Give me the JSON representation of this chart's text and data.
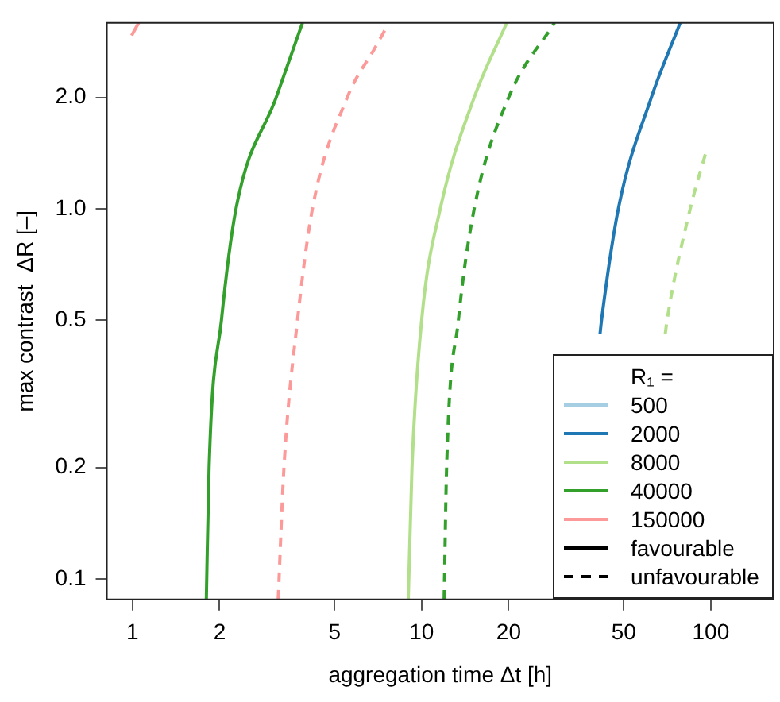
{
  "chart_data": {
    "type": "line",
    "xlabel": "aggregation time Δt [h]",
    "ylabel": "max contrast  ΔR [–]",
    "legend_title": "R₁ =",
    "legend": "bottom right",
    "log": "xy",
    "grid": false,
    "marker": "none",
    "xlim": [
      0.815,
      165
    ],
    "ylim": [
      0.088,
      3.18
    ],
    "xticks": [
      1,
      2,
      5,
      10,
      20,
      50,
      100
    ],
    "yticks": [
      0.1,
      0.2,
      0.5,
      {
        "value": 1,
        "label": "1.0"
      },
      {
        "value": 2,
        "label": "2.0"
      }
    ],
    "series": [
      {
        "name": "500",
        "color": "#a6cee3",
        "line_style": "solid"
      },
      {
        "name": "2000",
        "color": "#1f78b4",
        "line_style": "solid",
        "x": [
          41.4,
          41.9,
          47.9,
          62.3,
          78.4
        ],
        "values": [
          0.459,
          0.5,
          1.0,
          2.0,
          3.18
        ]
      },
      {
        "name": "8000",
        "color": "#b2df8a",
        "line_style": "solid",
        "x": [
          8.99,
          9.26,
          10.0,
          11.6,
          15.2,
          19.7
        ],
        "values": [
          0.088,
          0.2,
          0.5,
          1.0,
          2.0,
          3.18
        ]
      },
      {
        "name": "40000",
        "color": "#33a02c",
        "line_style": "solid",
        "x": [
          1.8,
          1.84,
          2.03,
          2.28,
          3.14,
          3.87
        ],
        "values": [
          0.088,
          0.2,
          0.5,
          1.0,
          2.0,
          3.18
        ]
      },
      {
        "name": "150000",
        "color": "#fb9a99",
        "line_style": "solid",
        "x": [
          0.993,
          1.05
        ],
        "values": [
          2.94,
          3.18
        ]
      },
      {
        "name": "favourable",
        "color": "#000000",
        "line_style": "solid"
      },
      {
        "name": "unfavourable",
        "color": "#000000",
        "line_style": "dashed"
      },
      {
        "color": "#fb9a99",
        "line_style": "dashed",
        "x": [
          3.19,
          3.34,
          3.72,
          4.19,
          5.53,
          6.93,
          7.5
        ],
        "values": [
          0.088,
          0.2,
          0.5,
          1.0,
          2.0,
          2.74,
          3.06
        ]
      },
      {
        "color": "#33a02c",
        "line_style": "dashed",
        "x": [
          11.96,
          12.2,
          13.4,
          15.2,
          20.0,
          28.8
        ],
        "values": [
          0.088,
          0.2,
          0.5,
          1.0,
          2.0,
          3.18
        ]
      },
      {
        "color": "#b2df8a",
        "line_style": "dashed",
        "x": [
          69.6,
          70.6,
          84.9,
          96.9
        ],
        "values": [
          0.459,
          0.5,
          1.0,
          1.45
        ]
      }
    ]
  }
}
